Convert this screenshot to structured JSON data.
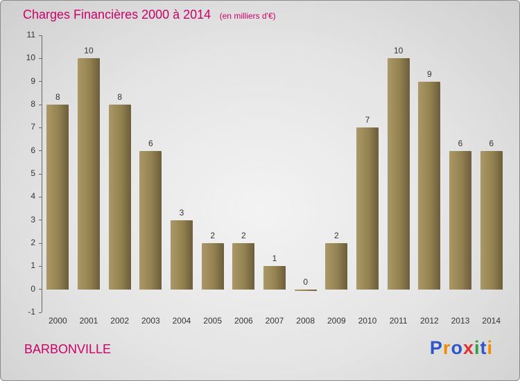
{
  "header": {
    "title": "Charges Financières 2000 à 2014",
    "subtitle": "(en milliers d'€)",
    "title_color": "#cc0066"
  },
  "footer": {
    "place": "BARBONVILLE",
    "logo_letters": [
      {
        "ch": "P",
        "color": "#2f55c8"
      },
      {
        "ch": "r",
        "color": "#f08c00"
      },
      {
        "ch": "o",
        "color": "#2f55c8"
      },
      {
        "ch": "x",
        "color": "#e03131"
      },
      {
        "ch": "i",
        "color": "#2f9e44"
      },
      {
        "ch": "t",
        "color": "#2f55c8"
      },
      {
        "ch": "i",
        "color": "#f08c00"
      }
    ]
  },
  "chart_data": {
    "type": "bar",
    "title": "Charges Financières 2000 à 2014",
    "subtitle": "(en milliers d'€)",
    "categories": [
      "2000",
      "2001",
      "2002",
      "2003",
      "2004",
      "2005",
      "2006",
      "2007",
      "2008",
      "2009",
      "2010",
      "2011",
      "2012",
      "2013",
      "2014"
    ],
    "values": [
      8,
      10,
      8,
      6,
      3,
      2,
      2,
      1,
      0,
      2,
      7,
      10,
      9,
      6,
      6
    ],
    "xlabel": "",
    "ylabel": "",
    "ylim": [
      -1,
      11
    ],
    "yticks": [
      -1,
      0,
      1,
      2,
      3,
      4,
      5,
      6,
      7,
      8,
      9,
      10,
      11
    ],
    "grid": false,
    "legend": "none",
    "bar_color_start": "#ab9868",
    "bar_color_end": "#6c5d3c",
    "value_label_color": "#333333"
  }
}
